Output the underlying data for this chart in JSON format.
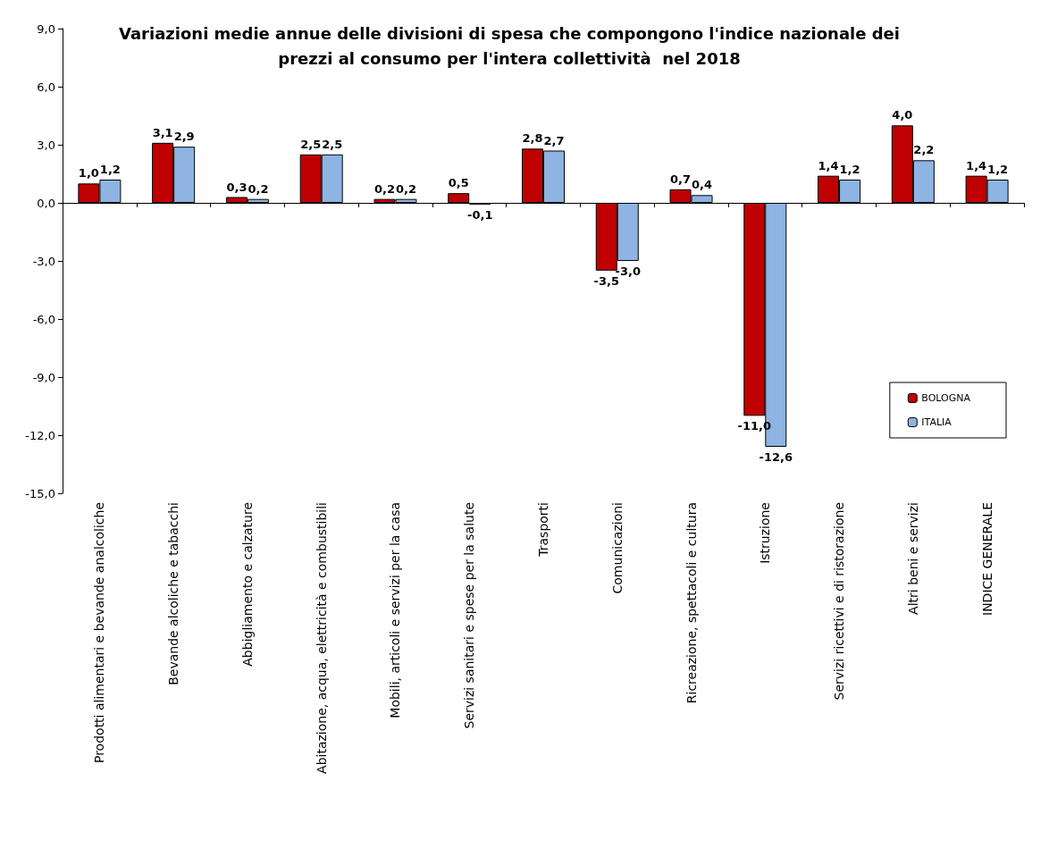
{
  "chart_data": {
    "type": "bar",
    "title": "Variazioni medie annue delle divisioni di spesa che compongono l'indice nazionale dei\nprezzi al consumo per l'intera collettività  nel 2018",
    "categories": [
      "Prodotti alimentari e bevande analcoliche",
      "Bevande alcoliche e tabacchi",
      "Abbigliamento e calzature",
      "Abitazione, acqua, elettricità e combustibili",
      "Mobili, articoli e servizi per la casa",
      "Servizi sanitari e spese per la salute",
      "Trasporti",
      "Comunicazioni",
      "Ricreazione, spettacoli e cultura",
      "Istruzione",
      "Servizi ricettivi e di ristorazione",
      "Altri beni e servizi",
      "INDICE GENERALE"
    ],
    "series": [
      {
        "name": "BOLOGNA",
        "color": "#c00000",
        "values": [
          1.0,
          3.1,
          0.3,
          2.5,
          0.2,
          0.5,
          2.8,
          -3.5,
          0.7,
          -11.0,
          1.4,
          4.0,
          1.4
        ],
        "value_labels": [
          "1,0",
          "3,1",
          "0,3",
          "2,5",
          "0,2",
          "0,5",
          "2,8",
          "-3,5",
          "0,7",
          "-11,0",
          "1,4",
          "4,0",
          "1,4"
        ]
      },
      {
        "name": "ITALIA",
        "color": "#8db4e2",
        "values": [
          1.2,
          2.9,
          0.2,
          2.5,
          0.2,
          -0.1,
          2.7,
          -3.0,
          0.4,
          -12.6,
          1.2,
          2.2,
          1.2
        ],
        "value_labels": [
          "1,2",
          "2,9",
          "0,2",
          "2,5",
          "0,2",
          "-0,1",
          "2,7",
          "-3,0",
          "0,4",
          "-12,6",
          "1,2",
          "2,2",
          "1,2"
        ]
      }
    ],
    "ylim": [
      -15,
      9
    ],
    "yticks": [
      {
        "value": -15,
        "label": "-15,0"
      },
      {
        "value": -12,
        "label": "-12,0"
      },
      {
        "value": -9,
        "label": "-9,0"
      },
      {
        "value": -6,
        "label": "-6,0"
      },
      {
        "value": -3,
        "label": "-3,0"
      },
      {
        "value": 0,
        "label": "0,0"
      },
      {
        "value": 3,
        "label": "3,0"
      },
      {
        "value": 6,
        "label": "6,0"
      },
      {
        "value": 9,
        "label": "9,0"
      }
    ],
    "legend": "bottom right"
  }
}
